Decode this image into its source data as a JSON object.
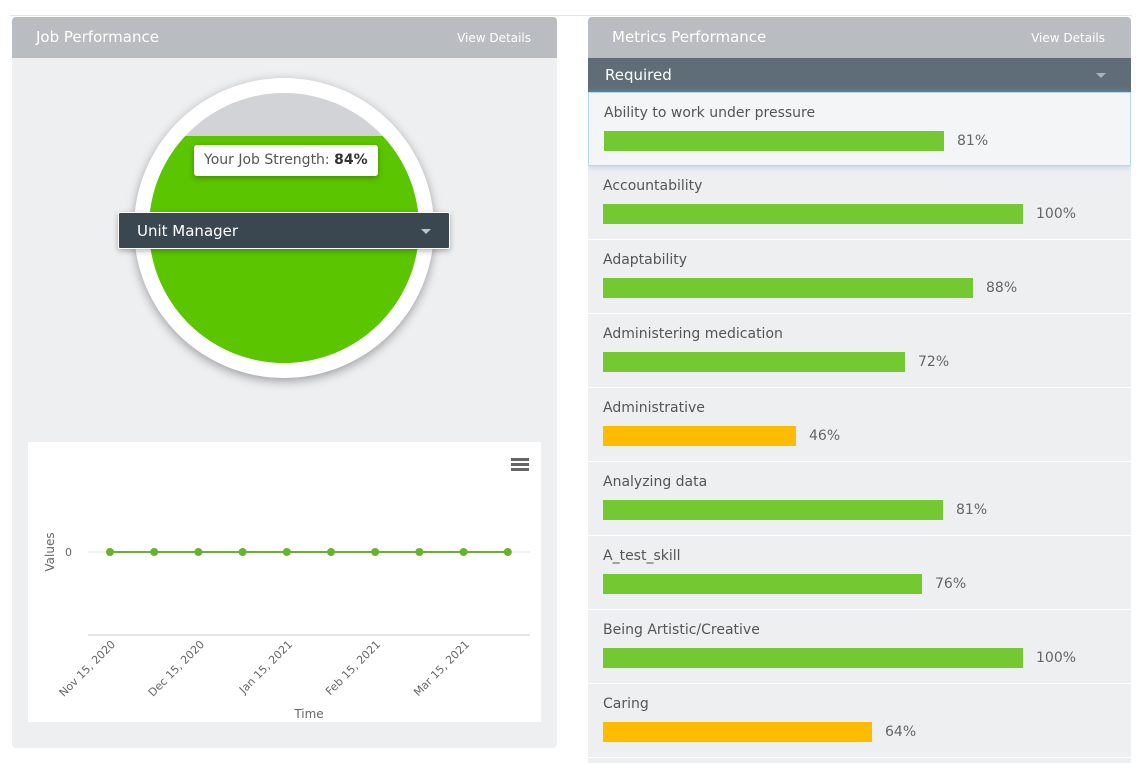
{
  "job_panel": {
    "title": "Job Performance",
    "view_details": "View Details",
    "strength_label": "Your Job Strength:",
    "strength_value": "84%",
    "strength_fraction": 0.84,
    "role": "Unit Manager",
    "colors": {
      "fill": "#5bc500",
      "empty": "#d1d3d6"
    }
  },
  "chart_data": {
    "type": "line",
    "xlabel": "Time",
    "ylabel": "Values",
    "y_ticks": [
      "0"
    ],
    "x_ticks": [
      "Nov 15, 2020",
      "Dec 15, 2020",
      "Jan 15, 2021",
      "Feb 15, 2021",
      "Mar 15, 2021"
    ],
    "series": [
      {
        "values": [
          0,
          0,
          0,
          0,
          0,
          0,
          0,
          0,
          0,
          0
        ],
        "color": "#67b32e"
      }
    ],
    "legend": false,
    "menu_icon": "hamburger-menu-icon"
  },
  "metrics_panel": {
    "title": "Metrics Performance",
    "view_details": "View Details",
    "filter": "Required",
    "colors": {
      "high": "#74c832",
      "low": "#fdbc00"
    },
    "items": [
      {
        "name": "Ability to work under pressure",
        "value": 81,
        "label": "81%",
        "level": "high"
      },
      {
        "name": "Accountability",
        "value": 100,
        "label": "100%",
        "level": "high"
      },
      {
        "name": "Adaptability",
        "value": 88,
        "label": "88%",
        "level": "high"
      },
      {
        "name": "Administering medication",
        "value": 72,
        "label": "72%",
        "level": "high"
      },
      {
        "name": "Administrative",
        "value": 46,
        "label": "46%",
        "level": "low"
      },
      {
        "name": "Analyzing data",
        "value": 81,
        "label": "81%",
        "level": "high"
      },
      {
        "name": "A_test_skill",
        "value": 76,
        "label": "76%",
        "level": "high"
      },
      {
        "name": "Being Artistic/Creative",
        "value": 100,
        "label": "100%",
        "level": "high"
      },
      {
        "name": "Caring",
        "value": 64,
        "label": "64%",
        "level": "low"
      }
    ]
  }
}
